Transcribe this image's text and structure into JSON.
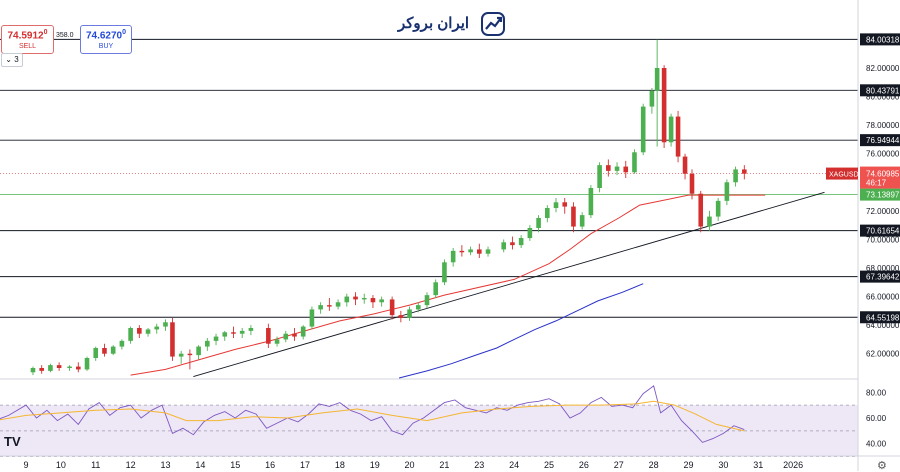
{
  "header": {
    "symbol_line": "",
    "sell_price": "74.5912",
    "sell_price_sup": "0",
    "sell_label": "SELL",
    "spread": "358.0",
    "buy_price": "74.6270",
    "buy_price_sup": "0",
    "buy_label": "BUY",
    "interval_chevron": "chevron-down-icon",
    "interval_count": "3",
    "top_right_label": ""
  },
  "watermark": {
    "brand": "ایران بروکر",
    "icon": "chart-logo-icon"
  },
  "footer": {
    "tv_logo": "TV",
    "settings_icon": "gear-icon"
  },
  "colors": {
    "up": "#26a69a",
    "up_body": "#4caf50",
    "down": "#ef5350",
    "down_body": "#d32f2f",
    "ma_red": "#e53935",
    "ma_blue": "#2932c9",
    "trendline": "#131722",
    "hline": "#131722",
    "price_line": "#e57373",
    "green_line": "#66bb6a",
    "rsi_line": "#7e57c2",
    "rsi_ma": "#f5b630",
    "rsi_band": "#ede7f6"
  },
  "chart_data": {
    "type": "candlestick",
    "title": "",
    "symbol_label": "XAGUSD",
    "y_axis": {
      "range": [
        60.3,
        85.5
      ],
      "ticks": [
        "62.00000",
        "64.00000",
        "66.00000",
        "68.00000",
        "70.00000",
        "72.00000",
        "74.00000",
        "76.00000",
        "78.00000",
        "80.00000",
        "82.00000"
      ]
    },
    "x_axis": {
      "labels": [
        "9",
        "10",
        "11",
        "12",
        "13",
        "14",
        "15",
        "16",
        "17",
        "18",
        "19",
        "20",
        "21",
        "23",
        "24",
        "25",
        "26",
        "27",
        "28",
        "29",
        "30",
        "31",
        "2026"
      ]
    },
    "horizontal_levels": [
      {
        "value": 84.00318,
        "label": "84.00318"
      },
      {
        "value": 80.43791,
        "label": "80.43791"
      },
      {
        "value": 76.94944,
        "label": "76.94944"
      },
      {
        "value": 70.61654,
        "label": "70.61654"
      },
      {
        "value": 67.39642,
        "label": "67.39642"
      },
      {
        "value": 64.55198,
        "label": "64.55198"
      }
    ],
    "current_price": {
      "value": 74.60985,
      "label": "74.60985",
      "countdown": "46:17"
    },
    "green_level": {
      "value": 73.13897,
      "label": "73.13897"
    },
    "trendline": {
      "from": [
        13.8,
        60.4
      ],
      "to": [
        31.9,
        73.3
      ]
    },
    "ma_red": [
      [
        12.0,
        60.5
      ],
      [
        13.0,
        60.9
      ],
      [
        14.0,
        61.6
      ],
      [
        15.0,
        62.3
      ],
      [
        16.0,
        62.9
      ],
      [
        17.0,
        63.6
      ],
      [
        18.0,
        64.3
      ],
      [
        19.0,
        64.8
      ],
      [
        20.0,
        65.4
      ],
      [
        21.0,
        66.1
      ],
      [
        23.0,
        67.2
      ],
      [
        24.0,
        68.3
      ],
      [
        24.6,
        69.3
      ],
      [
        25.2,
        70.4
      ],
      [
        26.0,
        71.5
      ],
      [
        26.6,
        72.4
      ],
      [
        27.2,
        72.7
      ],
      [
        27.6,
        72.9
      ],
      [
        28.0,
        73.1
      ],
      [
        28.6,
        73.1
      ],
      [
        29.4,
        73.1
      ],
      [
        30.2,
        73.1
      ]
    ],
    "ma_blue": [
      [
        19.7,
        60.3
      ],
      [
        20.5,
        60.8
      ],
      [
        21.2,
        61.3
      ],
      [
        21.9,
        61.9
      ],
      [
        22.5,
        62.4
      ],
      [
        23.0,
        63.0
      ],
      [
        23.6,
        63.7
      ],
      [
        24.2,
        64.3
      ],
      [
        24.8,
        65.0
      ],
      [
        25.4,
        65.7
      ],
      [
        26.1,
        66.3
      ],
      [
        26.7,
        66.9
      ]
    ],
    "candles": [
      {
        "x": 8.1,
        "o": 60.7,
        "h": 60.8,
        "c": 60.7,
        "l": 60.3
      },
      {
        "x": 9.2,
        "o": 60.7,
        "h": 61.1,
        "c": 61.0,
        "l": 60.5
      },
      {
        "x": 9.45,
        "o": 61.0,
        "h": 61.2,
        "c": 60.8,
        "l": 60.6
      },
      {
        "x": 9.7,
        "o": 60.8,
        "h": 61.3,
        "c": 61.2,
        "l": 60.7
      },
      {
        "x": 9.95,
        "o": 61.2,
        "h": 61.4,
        "c": 61.0,
        "l": 60.8
      },
      {
        "x": 10.25,
        "o": 61.0,
        "h": 61.2,
        "c": 61.1,
        "l": 60.8
      },
      {
        "x": 10.5,
        "o": 61.1,
        "h": 61.4,
        "c": 60.9,
        "l": 60.7
      },
      {
        "x": 10.75,
        "o": 60.9,
        "h": 61.8,
        "c": 61.7,
        "l": 60.8
      },
      {
        "x": 11.0,
        "o": 61.7,
        "h": 62.5,
        "c": 62.4,
        "l": 61.5
      },
      {
        "x": 11.25,
        "o": 62.4,
        "h": 62.7,
        "c": 62.0,
        "l": 61.8
      },
      {
        "x": 11.5,
        "o": 62.0,
        "h": 62.6,
        "c": 62.5,
        "l": 61.9
      },
      {
        "x": 11.75,
        "o": 62.5,
        "h": 63.0,
        "c": 62.9,
        "l": 62.3
      },
      {
        "x": 12.0,
        "o": 62.9,
        "h": 63.9,
        "c": 63.8,
        "l": 62.7
      },
      {
        "x": 12.25,
        "o": 63.8,
        "h": 64.0,
        "c": 63.4,
        "l": 63.1
      },
      {
        "x": 12.5,
        "o": 63.4,
        "h": 63.8,
        "c": 63.7,
        "l": 63.2
      },
      {
        "x": 12.75,
        "o": 63.7,
        "h": 64.1,
        "c": 63.9,
        "l": 63.4
      },
      {
        "x": 13.0,
        "o": 63.9,
        "h": 64.4,
        "c": 64.2,
        "l": 63.6
      },
      {
        "x": 13.2,
        "o": 64.2,
        "h": 64.5,
        "c": 61.8,
        "l": 61.5
      },
      {
        "x": 13.45,
        "o": 61.8,
        "h": 62.2,
        "c": 62.0,
        "l": 61.3
      },
      {
        "x": 13.7,
        "o": 62.0,
        "h": 62.3,
        "c": 61.9,
        "l": 60.9
      },
      {
        "x": 13.95,
        "o": 61.9,
        "h": 62.6,
        "c": 62.5,
        "l": 61.6
      },
      {
        "x": 14.2,
        "o": 62.5,
        "h": 63.1,
        "c": 62.9,
        "l": 62.2
      },
      {
        "x": 14.45,
        "o": 62.9,
        "h": 63.4,
        "c": 63.2,
        "l": 62.6
      },
      {
        "x": 14.7,
        "o": 63.2,
        "h": 63.6,
        "c": 63.5,
        "l": 62.9
      },
      {
        "x": 14.95,
        "o": 63.5,
        "h": 63.9,
        "c": 63.4,
        "l": 63.1
      },
      {
        "x": 15.2,
        "o": 63.4,
        "h": 63.8,
        "c": 63.6,
        "l": 63.1
      },
      {
        "x": 15.45,
        "o": 63.6,
        "h": 64.0,
        "c": 63.8,
        "l": 63.3
      },
      {
        "x": 15.95,
        "o": 63.8,
        "h": 64.1,
        "c": 62.7,
        "l": 62.4
      },
      {
        "x": 16.2,
        "o": 62.7,
        "h": 63.2,
        "c": 63.0,
        "l": 62.5
      },
      {
        "x": 16.45,
        "o": 63.0,
        "h": 63.6,
        "c": 63.4,
        "l": 62.8
      },
      {
        "x": 16.7,
        "o": 63.4,
        "h": 63.8,
        "c": 63.2,
        "l": 62.9
      },
      {
        "x": 16.95,
        "o": 63.2,
        "h": 64.0,
        "c": 63.9,
        "l": 63.0
      },
      {
        "x": 17.2,
        "o": 63.9,
        "h": 65.3,
        "c": 65.1,
        "l": 63.7
      },
      {
        "x": 17.45,
        "o": 65.1,
        "h": 65.6,
        "c": 65.4,
        "l": 64.8
      },
      {
        "x": 17.7,
        "o": 65.4,
        "h": 65.9,
        "c": 65.3,
        "l": 65.0
      },
      {
        "x": 17.95,
        "o": 65.3,
        "h": 65.8,
        "c": 65.6,
        "l": 65.1
      },
      {
        "x": 18.2,
        "o": 65.6,
        "h": 66.2,
        "c": 66.0,
        "l": 65.3
      },
      {
        "x": 18.45,
        "o": 66.0,
        "h": 66.3,
        "c": 65.8,
        "l": 65.4
      },
      {
        "x": 18.7,
        "o": 65.8,
        "h": 66.2,
        "c": 65.9,
        "l": 65.5
      },
      {
        "x": 18.95,
        "o": 65.9,
        "h": 66.1,
        "c": 65.6,
        "l": 65.2
      },
      {
        "x": 19.2,
        "o": 65.6,
        "h": 66.0,
        "c": 65.8,
        "l": 65.3
      },
      {
        "x": 19.5,
        "o": 65.8,
        "h": 66.0,
        "c": 64.7,
        "l": 64.4
      },
      {
        "x": 19.75,
        "o": 64.7,
        "h": 65.0,
        "c": 64.5,
        "l": 64.2
      },
      {
        "x": 20.0,
        "o": 64.5,
        "h": 65.3,
        "c": 65.1,
        "l": 64.3
      },
      {
        "x": 20.25,
        "o": 65.1,
        "h": 65.6,
        "c": 65.4,
        "l": 64.9
      },
      {
        "x": 20.5,
        "o": 65.4,
        "h": 66.3,
        "c": 66.1,
        "l": 65.2
      },
      {
        "x": 20.75,
        "o": 66.1,
        "h": 67.2,
        "c": 67.0,
        "l": 65.9
      },
      {
        "x": 21.0,
        "o": 67.0,
        "h": 68.6,
        "c": 68.4,
        "l": 66.8
      },
      {
        "x": 21.25,
        "o": 68.4,
        "h": 69.4,
        "c": 69.2,
        "l": 68.1
      },
      {
        "x": 21.5,
        "o": 69.2,
        "h": 69.6,
        "c": 69.1,
        "l": 68.8
      },
      {
        "x": 21.75,
        "o": 69.1,
        "h": 69.5,
        "c": 69.3,
        "l": 68.9
      },
      {
        "x": 22.0,
        "o": 69.3,
        "h": 69.7,
        "c": 69.0,
        "l": 68.7
      },
      {
        "x": 22.25,
        "o": 69.0,
        "h": 69.5,
        "c": 69.3,
        "l": 68.8
      },
      {
        "x": 22.7,
        "o": 69.3,
        "h": 70.0,
        "c": 69.8,
        "l": 69.1
      },
      {
        "x": 22.95,
        "o": 69.8,
        "h": 70.2,
        "c": 69.6,
        "l": 69.3
      },
      {
        "x": 23.2,
        "o": 69.6,
        "h": 70.3,
        "c": 70.1,
        "l": 69.4
      },
      {
        "x": 23.45,
        "o": 70.1,
        "h": 71.0,
        "c": 70.8,
        "l": 69.9
      },
      {
        "x": 23.7,
        "o": 70.8,
        "h": 71.7,
        "c": 71.5,
        "l": 70.5
      },
      {
        "x": 23.95,
        "o": 71.5,
        "h": 72.4,
        "c": 72.2,
        "l": 71.2
      },
      {
        "x": 24.2,
        "o": 72.2,
        "h": 72.9,
        "c": 72.6,
        "l": 71.9
      },
      {
        "x": 24.45,
        "o": 72.6,
        "h": 72.9,
        "c": 72.3,
        "l": 71.8
      },
      {
        "x": 24.7,
        "o": 72.3,
        "h": 72.6,
        "c": 70.9,
        "l": 70.5
      },
      {
        "x": 24.95,
        "o": 70.9,
        "h": 71.9,
        "c": 71.7,
        "l": 70.7
      },
      {
        "x": 25.2,
        "o": 71.7,
        "h": 73.8,
        "c": 73.6,
        "l": 71.5
      },
      {
        "x": 25.45,
        "o": 73.6,
        "h": 75.4,
        "c": 75.2,
        "l": 73.3
      },
      {
        "x": 25.7,
        "o": 75.2,
        "h": 75.6,
        "c": 74.8,
        "l": 74.4
      },
      {
        "x": 25.95,
        "o": 74.8,
        "h": 75.4,
        "c": 75.1,
        "l": 74.5
      },
      {
        "x": 26.2,
        "o": 75.1,
        "h": 75.5,
        "c": 74.7,
        "l": 74.3
      },
      {
        "x": 26.45,
        "o": 74.7,
        "h": 76.3,
        "c": 76.1,
        "l": 74.6
      },
      {
        "x": 26.7,
        "o": 76.1,
        "h": 79.5,
        "c": 79.3,
        "l": 75.9
      },
      {
        "x": 26.95,
        "o": 79.3,
        "h": 80.6,
        "c": 80.4,
        "l": 78.8
      },
      {
        "x": 27.1,
        "o": 80.4,
        "h": 84.0,
        "c": 82.0,
        "l": 76.5
      },
      {
        "x": 27.3,
        "o": 82.0,
        "h": 82.2,
        "c": 76.8,
        "l": 76.4
      },
      {
        "x": 27.5,
        "o": 76.8,
        "h": 78.8,
        "c": 78.6,
        "l": 76.5
      },
      {
        "x": 27.7,
        "o": 78.6,
        "h": 79.0,
        "c": 75.8,
        "l": 75.4
      },
      {
        "x": 27.9,
        "o": 75.8,
        "h": 76.0,
        "c": 74.6,
        "l": 74.2
      },
      {
        "x": 28.1,
        "o": 74.6,
        "h": 74.9,
        "c": 73.2,
        "l": 72.8
      },
      {
        "x": 28.35,
        "o": 73.2,
        "h": 73.4,
        "c": 70.9,
        "l": 70.5
      },
      {
        "x": 28.6,
        "o": 70.9,
        "h": 72.0,
        "c": 71.6,
        "l": 70.6
      },
      {
        "x": 28.85,
        "o": 71.6,
        "h": 72.9,
        "c": 72.7,
        "l": 71.3
      },
      {
        "x": 29.1,
        "o": 72.7,
        "h": 74.2,
        "c": 74.0,
        "l": 72.4
      },
      {
        "x": 29.35,
        "o": 74.0,
        "h": 75.1,
        "c": 74.9,
        "l": 73.7
      },
      {
        "x": 29.6,
        "o": 74.9,
        "h": 75.2,
        "c": 74.6,
        "l": 74.2
      }
    ],
    "rsi": {
      "ticks": [
        "80.00",
        "60.00",
        "40.00"
      ],
      "range": [
        32,
        88
      ],
      "upper_band": 70,
      "lower_band": 30,
      "mid": 50,
      "line": [
        [
          8.1,
          58
        ],
        [
          8.5,
          62
        ],
        [
          9.0,
          70
        ],
        [
          9.3,
          60
        ],
        [
          9.6,
          66
        ],
        [
          9.9,
          58
        ],
        [
          10.2,
          63
        ],
        [
          10.5,
          55
        ],
        [
          10.8,
          67
        ],
        [
          11.1,
          72
        ],
        [
          11.4,
          62
        ],
        [
          11.7,
          68
        ],
        [
          12.0,
          70
        ],
        [
          12.3,
          60
        ],
        [
          12.6,
          66
        ],
        [
          12.9,
          70
        ],
        [
          13.2,
          48
        ],
        [
          13.5,
          52
        ],
        [
          13.8,
          47
        ],
        [
          14.1,
          57
        ],
        [
          14.4,
          62
        ],
        [
          14.7,
          65
        ],
        [
          15.0,
          60
        ],
        [
          15.3,
          66
        ],
        [
          15.6,
          63
        ],
        [
          15.9,
          52
        ],
        [
          16.2,
          56
        ],
        [
          16.5,
          60
        ],
        [
          16.8,
          57
        ],
        [
          17.1,
          63
        ],
        [
          17.4,
          71
        ],
        [
          17.7,
          69
        ],
        [
          18.0,
          72
        ],
        [
          18.3,
          66
        ],
        [
          18.6,
          63
        ],
        [
          18.9,
          58
        ],
        [
          19.2,
          61
        ],
        [
          19.5,
          50
        ],
        [
          19.8,
          47
        ],
        [
          20.1,
          56
        ],
        [
          20.4,
          60
        ],
        [
          20.7,
          66
        ],
        [
          21.0,
          72
        ],
        [
          21.3,
          74
        ],
        [
          21.6,
          68
        ],
        [
          21.9,
          66
        ],
        [
          22.2,
          64
        ],
        [
          22.5,
          68
        ],
        [
          22.8,
          66
        ],
        [
          23.1,
          70
        ],
        [
          23.4,
          72
        ],
        [
          23.7,
          73
        ],
        [
          24.0,
          75
        ],
        [
          24.3,
          71
        ],
        [
          24.6,
          60
        ],
        [
          24.9,
          64
        ],
        [
          25.2,
          72
        ],
        [
          25.5,
          76
        ],
        [
          25.8,
          69
        ],
        [
          26.1,
          70
        ],
        [
          26.4,
          68
        ],
        [
          26.7,
          79
        ],
        [
          27.0,
          85
        ],
        [
          27.2,
          64
        ],
        [
          27.5,
          70
        ],
        [
          27.8,
          58
        ],
        [
          28.1,
          50
        ],
        [
          28.4,
          41
        ],
        [
          28.7,
          44
        ],
        [
          29.0,
          48
        ],
        [
          29.3,
          54
        ],
        [
          29.6,
          51
        ]
      ],
      "ma": [
        [
          8.1,
          58
        ],
        [
          9.0,
          62
        ],
        [
          10.0,
          64
        ],
        [
          11.0,
          66
        ],
        [
          12.0,
          67
        ],
        [
          13.0,
          64
        ],
        [
          13.6,
          58
        ],
        [
          14.5,
          58
        ],
        [
          15.5,
          61
        ],
        [
          16.5,
          60
        ],
        [
          17.5,
          64
        ],
        [
          18.5,
          67
        ],
        [
          19.5,
          62
        ],
        [
          20.5,
          58
        ],
        [
          21.5,
          64
        ],
        [
          22.5,
          67
        ],
        [
          23.5,
          69
        ],
        [
          24.5,
          70
        ],
        [
          25.5,
          70
        ],
        [
          26.5,
          71
        ],
        [
          27.0,
          73
        ],
        [
          27.6,
          70
        ],
        [
          28.2,
          63
        ],
        [
          28.8,
          55
        ],
        [
          29.6,
          50
        ]
      ]
    }
  }
}
